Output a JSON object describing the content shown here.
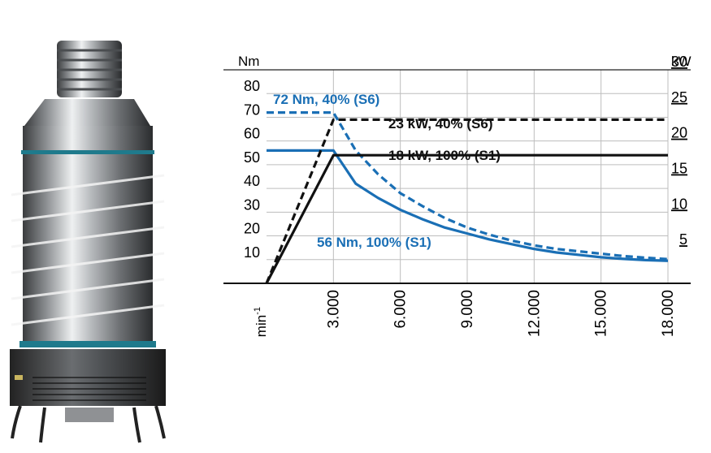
{
  "image": {
    "subject": "motor-spindle-photo"
  },
  "chart_data": {
    "type": "line",
    "title": "",
    "y_left_label": "Nm",
    "y_right_label": "kW",
    "x_label": "min",
    "x_label_superscript": "-1",
    "x_ticks": [
      "3.000",
      "6.000",
      "9.000",
      "12.000",
      "15.000",
      "18.000"
    ],
    "x_tick_values": [
      3000,
      6000,
      9000,
      12000,
      15000,
      18000
    ],
    "xlim": [
      0,
      18000
    ],
    "y_left_ticks": [
      "10",
      "20",
      "30",
      "40",
      "50",
      "60",
      "70",
      "80"
    ],
    "y_left_tick_values": [
      10,
      20,
      30,
      40,
      50,
      60,
      70,
      80
    ],
    "ylim_left": [
      0,
      90
    ],
    "y_right_ticks": [
      "5",
      "10",
      "15",
      "20",
      "25",
      "30"
    ],
    "y_right_tick_values": [
      5,
      10,
      15,
      20,
      25,
      30
    ],
    "ylim_right": [
      0,
      30
    ],
    "grid": true,
    "series": [
      {
        "name": "72 Nm, 40% (S6)",
        "axis": "left",
        "style": "dashed",
        "color": "#1a6fb5",
        "x": [
          0,
          3000,
          4000,
          5000,
          6000,
          7000,
          8000,
          9000,
          10000,
          11000,
          12000,
          13000,
          14000,
          15000,
          16000,
          17000,
          18000
        ],
        "y": [
          72,
          72,
          56,
          46,
          38,
          32.5,
          27.5,
          23.5,
          20.5,
          18,
          16,
          14.5,
          13.5,
          12.5,
          11.5,
          10.8,
          10.2
        ]
      },
      {
        "name": "56 Nm, 100% (S1)",
        "axis": "left",
        "style": "solid",
        "color": "#1a6fb5",
        "x": [
          0,
          3000,
          4000,
          5000,
          6000,
          7000,
          8000,
          9000,
          10000,
          11000,
          12000,
          13000,
          14000,
          15000,
          16000,
          17000,
          18000
        ],
        "y": [
          56,
          56,
          42,
          36,
          31,
          27,
          23.5,
          21,
          18.5,
          16.5,
          14.5,
          13,
          12,
          11,
          10.3,
          9.8,
          9.5
        ]
      },
      {
        "name": "23 kW, 40% (S6)",
        "axis": "right",
        "style": "dashed",
        "color": "#111111",
        "x": [
          0,
          3000,
          18000
        ],
        "y": [
          0,
          23,
          23
        ]
      },
      {
        "name": "18 kW, 100% (S1)",
        "axis": "right",
        "style": "solid",
        "color": "#111111",
        "x": [
          0,
          3000,
          18000
        ],
        "y": [
          0,
          18,
          18
        ]
      }
    ],
    "annotations": [
      {
        "text": "72 Nm, 40% (S6)",
        "color": "#1a6fb5",
        "series": "72 Nm, 40% (S6)"
      },
      {
        "text": "23 kW, 40% (S6)",
        "color": "#111111",
        "series": "23 kW, 40% (S6)"
      },
      {
        "text": "18 kW, 100% (S1)",
        "color": "#111111",
        "series": "18 kW, 100% (S1)"
      },
      {
        "text": "56 Nm, 100% (S1)",
        "color": "#1a6fb5",
        "series": "56 Nm, 100% (S1)"
      }
    ]
  }
}
